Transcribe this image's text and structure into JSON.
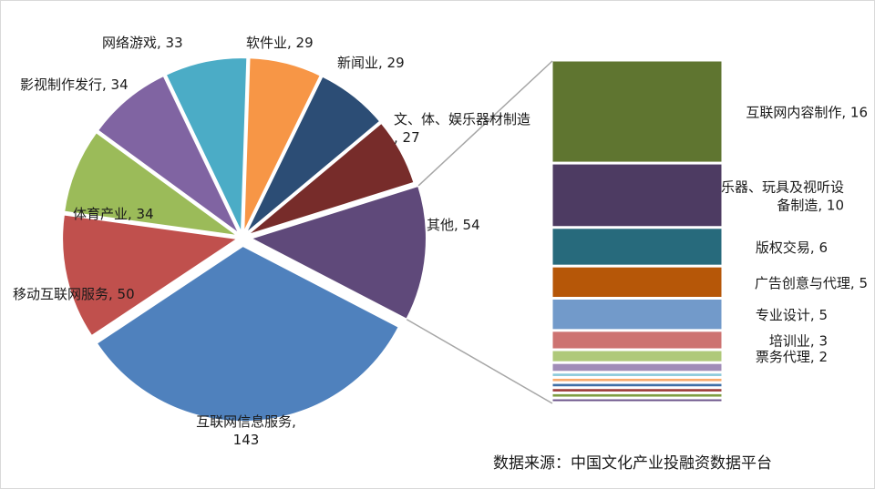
{
  "chart_data": {
    "type": "pie",
    "subtype": "bar-of-pie",
    "slices": [
      {
        "label": "互联网信息服务,",
        "value": 143,
        "color": "#4f81bd"
      },
      {
        "label": "移动互联网服务,",
        "value": 50,
        "color": "#c0504d"
      },
      {
        "label": "体育产业,",
        "value": 34,
        "color": "#9bbb59"
      },
      {
        "label": "影视制作发行,",
        "value": 34,
        "color": "#8064a2"
      },
      {
        "label": "网络游戏,",
        "value": 33,
        "color": "#4bacc6"
      },
      {
        "label": "软件业,",
        "value": 29,
        "color": "#f79646"
      },
      {
        "label": "新闻业,",
        "value": 29,
        "color": "#2c4d75"
      },
      {
        "label": "文、体、娱乐器材制造,",
        "value": 27,
        "color": "#772c2a"
      },
      {
        "label": "其他,",
        "value": 54,
        "color": "#5f497a"
      }
    ],
    "breakdown_of": "其他,",
    "bar_segments": [
      {
        "label": "互联网内容制作,",
        "value": 16,
        "color": "#5f7530"
      },
      {
        "label": "乐器、玩具及视听设备制造,",
        "value": 10,
        "color": "#4d3b62"
      },
      {
        "label": "版权交易,",
        "value": 6,
        "color": "#276a7c"
      },
      {
        "label": "广告创意与代理,",
        "value": 5,
        "color": "#b65708"
      },
      {
        "label": "专业设计,",
        "value": 5,
        "color": "#729aca"
      },
      {
        "label": "培训业,",
        "value": 3,
        "color": "#cd7371"
      },
      {
        "label": "票务代理,",
        "value": 2,
        "color": "#afc97a"
      },
      {
        "label": "",
        "value": 1.5,
        "color": "#a18db8"
      },
      {
        "label": "",
        "value": 0.8,
        "color": "#8ccadb"
      },
      {
        "label": "",
        "value": 0.8,
        "color": "#f9ab6b"
      },
      {
        "label": "",
        "value": 0.8,
        "color": "#3f6fa7"
      },
      {
        "label": "",
        "value": 0.8,
        "color": "#9e3d3a"
      },
      {
        "label": "",
        "value": 0.8,
        "color": "#7f9e42"
      },
      {
        "label": "",
        "value": 0.7,
        "color": "#6b538a"
      }
    ]
  },
  "source_text": "数据来源：中国文化产业投融资数据平台"
}
